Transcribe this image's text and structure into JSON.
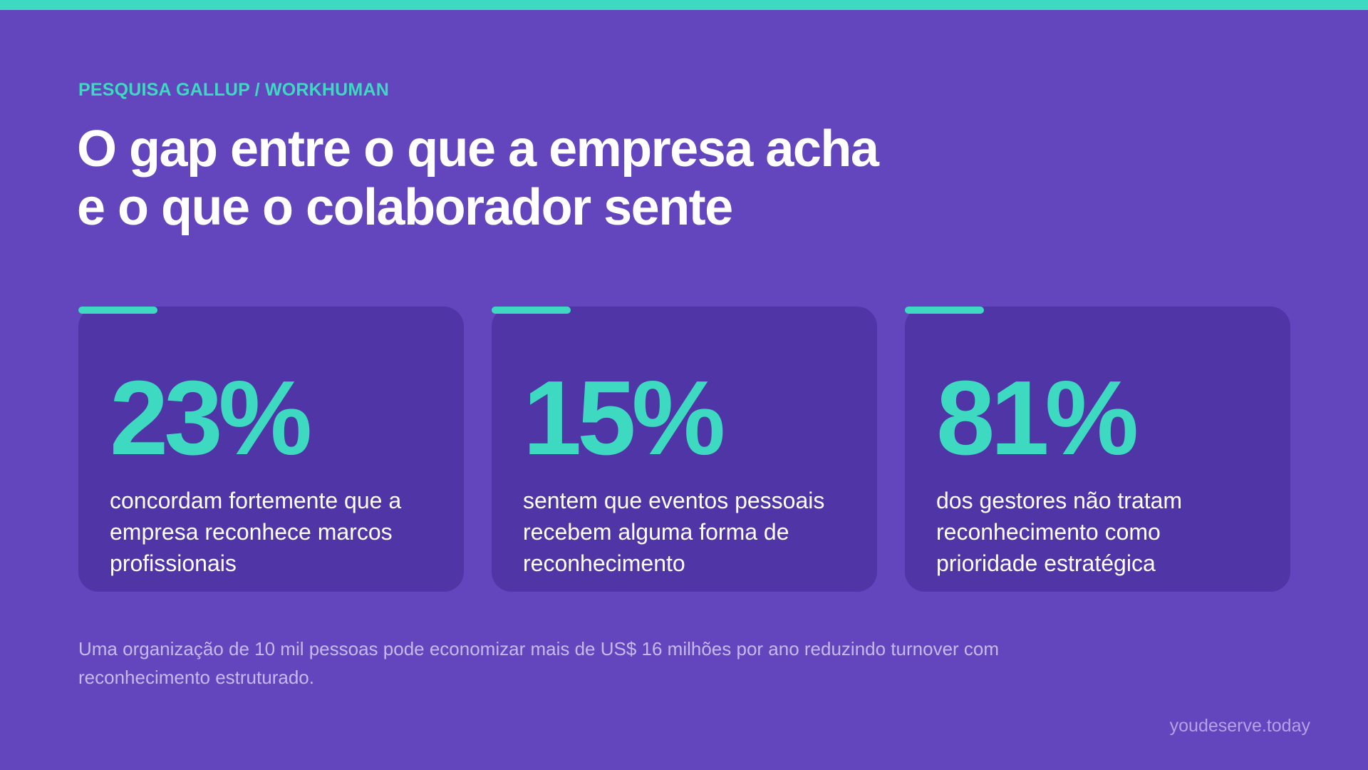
{
  "eyebrow": "PESQUISA GALLUP / WORKHUMAN",
  "title": {
    "line1": "O gap entre o que a empresa acha",
    "line2": "e o que o colaborador sente"
  },
  "cards": [
    {
      "stat": "23%",
      "description": "concordam fortemente que a empresa reconhece marcos profissionais"
    },
    {
      "stat": "15%",
      "description": "sentem que eventos pessoais recebem alguma forma de reconhecimento"
    },
    {
      "stat": "81%",
      "description": "dos gestores não tratam reconhecimento como prioridade estratégica"
    }
  ],
  "footnote": "Uma organização de 10 mil pessoas pode economizar mais de US$ 16 milhões por ano reduzindo turnover com reconhecimento estruturado.",
  "brand": "youdeserve.today",
  "colors": {
    "background": "#6346BE",
    "card": "#5035A7",
    "accent": "#3DD9C1",
    "text": "#FFFFFF",
    "muted": "#C6B9EE"
  }
}
